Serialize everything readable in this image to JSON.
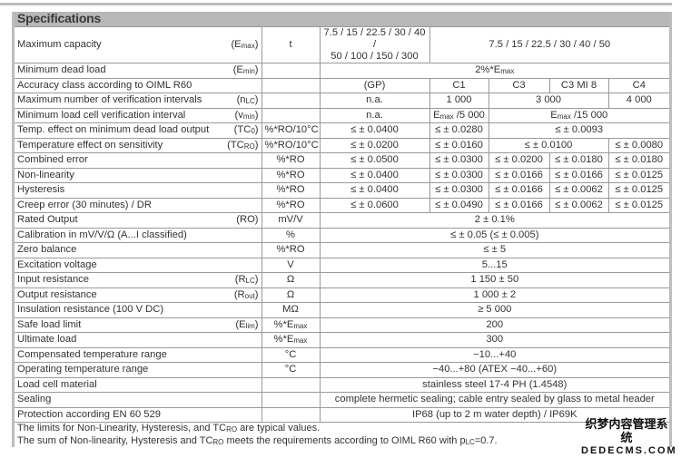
{
  "title": "Specifications",
  "rows": [
    {
      "label": "Maximum capacity",
      "symbol": [
        "(E",
        {
          "sub": "max"
        },
        ")"
      ],
      "unit": [
        "t"
      ],
      "values": [
        {
          "t": [
            "7.5 / 15 / 22.5 / 30 / 40 /\n50 / 100 / 150 / 300"
          ],
          "span": 1
        },
        {
          "t": [
            "7.5 / 15 / 22.5 / 30 / 40 / 50"
          ],
          "span": 4
        }
      ]
    },
    {
      "label": "Minimum dead load",
      "symbol": [
        "(E",
        {
          "sub": "min"
        },
        ")"
      ],
      "unit": [],
      "values": [
        {
          "t": [
            "2%*E",
            {
              "sub": "max"
            }
          ],
          "span": 5
        }
      ]
    },
    {
      "label": "Accuracy class according to OIML R60",
      "symbol": [],
      "unit": [],
      "values": [
        {
          "t": [
            "(GP)"
          ],
          "span": 1
        },
        {
          "t": [
            "C1"
          ],
          "span": 1
        },
        {
          "t": [
            "C3"
          ],
          "span": 1
        },
        {
          "t": [
            "C3 MI 8"
          ],
          "span": 1
        },
        {
          "t": [
            "C4"
          ],
          "span": 1
        }
      ]
    },
    {
      "label": "Maximum number of verification intervals",
      "symbol": [
        "(n",
        {
          "sub": "LC"
        },
        ")"
      ],
      "unit": [],
      "values": [
        {
          "t": [
            "n.a."
          ],
          "span": 1
        },
        {
          "t": [
            "1 000"
          ],
          "span": 1
        },
        {
          "t": [
            "3 000"
          ],
          "span": 2
        },
        {
          "t": [
            "4 000"
          ],
          "span": 1
        }
      ]
    },
    {
      "label": "Minimum load cell verification interval",
      "symbol": [
        "(v",
        {
          "sub": "min"
        },
        ")"
      ],
      "unit": [],
      "values": [
        {
          "t": [
            "n.a."
          ],
          "span": 1
        },
        {
          "t": [
            "E",
            {
              "sub": "max"
            },
            " /5 000"
          ],
          "span": 1
        },
        {
          "t": [
            "E",
            {
              "sub": "max"
            },
            " /15 000"
          ],
          "span": 3
        }
      ]
    },
    {
      "label": "Temp. effect on minimum dead load output",
      "symbol": [
        "(TC",
        {
          "sub": "0"
        },
        ")"
      ],
      "unit": [
        "%*RO/10°C"
      ],
      "values": [
        {
          "t": [
            "≤ ± 0.0400"
          ],
          "span": 1
        },
        {
          "t": [
            "≤ ± 0.0280"
          ],
          "span": 1
        },
        {
          "t": [
            "≤ ± 0.0093"
          ],
          "span": 3
        }
      ]
    },
    {
      "label": "Temperature effect on sensitivity",
      "symbol": [
        "(TC",
        {
          "sub": "RO"
        },
        ")"
      ],
      "unit": [
        "%*RO/10°C"
      ],
      "values": [
        {
          "t": [
            "≤ ± 0.0200"
          ],
          "span": 1
        },
        {
          "t": [
            "≤ ± 0.0160"
          ],
          "span": 1
        },
        {
          "t": [
            "≤ ± 0.0100"
          ],
          "span": 2
        },
        {
          "t": [
            "≤ ± 0.0080"
          ],
          "span": 1
        }
      ]
    },
    {
      "label": "Combined error",
      "symbol": [],
      "unit": [
        "%*RO"
      ],
      "values": [
        {
          "t": [
            "≤ ± 0.0500"
          ],
          "span": 1
        },
        {
          "t": [
            "≤ ± 0.0300"
          ],
          "span": 1
        },
        {
          "t": [
            "≤ ± 0.0200"
          ],
          "span": 1
        },
        {
          "t": [
            "≤ ± 0.0180"
          ],
          "span": 1
        },
        {
          "t": [
            "≤ ± 0.0180"
          ],
          "span": 1
        }
      ]
    },
    {
      "label": "Non-linearity",
      "symbol": [],
      "unit": [
        "%*RO"
      ],
      "values": [
        {
          "t": [
            "≤ ± 0.0400"
          ],
          "span": 1
        },
        {
          "t": [
            "≤ ± 0.0300"
          ],
          "span": 1
        },
        {
          "t": [
            "≤ ± 0.0166"
          ],
          "span": 1
        },
        {
          "t": [
            "≤ ± 0.0166"
          ],
          "span": 1
        },
        {
          "t": [
            "≤ ± 0.0125"
          ],
          "span": 1
        }
      ]
    },
    {
      "label": "Hysteresis",
      "symbol": [],
      "unit": [
        "%*RO"
      ],
      "values": [
        {
          "t": [
            "≤ ± 0.0400"
          ],
          "span": 1
        },
        {
          "t": [
            "≤ ± 0.0300"
          ],
          "span": 1
        },
        {
          "t": [
            "≤ ± 0.0166"
          ],
          "span": 1
        },
        {
          "t": [
            "≤ ± 0.0062"
          ],
          "span": 1
        },
        {
          "t": [
            "≤ ± 0.0125"
          ],
          "span": 1
        }
      ]
    },
    {
      "label": "Creep error (30 minutes) / DR",
      "symbol": [],
      "unit": [
        "%*RO"
      ],
      "values": [
        {
          "t": [
            "≤ ± 0.0600"
          ],
          "span": 1
        },
        {
          "t": [
            "≤ ± 0.0490"
          ],
          "span": 1
        },
        {
          "t": [
            "≤ ± 0.0166"
          ],
          "span": 1
        },
        {
          "t": [
            "≤ ± 0.0062"
          ],
          "span": 1
        },
        {
          "t": [
            "≤ ± 0.0125"
          ],
          "span": 1
        }
      ]
    },
    {
      "label": "Rated Output",
      "symbol": [
        "(RO)"
      ],
      "unit": [
        "mV/V"
      ],
      "values": [
        {
          "t": [
            "2 ± 0.1%"
          ],
          "span": 5
        }
      ]
    },
    {
      "label": "Calibration in mV/V/Ω (A...I classified)",
      "symbol": [],
      "unit": [
        "%"
      ],
      "values": [
        {
          "t": [
            "≤ ± 0.05 (≤ ± 0.005)"
          ],
          "span": 5
        }
      ]
    },
    {
      "label": "Zero balance",
      "symbol": [],
      "unit": [
        "%*RO"
      ],
      "values": [
        {
          "t": [
            "≤ ± 5"
          ],
          "span": 5
        }
      ]
    },
    {
      "label": "Excitation voltage",
      "symbol": [],
      "unit": [
        "V"
      ],
      "values": [
        {
          "t": [
            "5...15"
          ],
          "span": 5
        }
      ]
    },
    {
      "label": "Input resistance",
      "symbol": [
        "(R",
        {
          "sub": "LC"
        },
        ")"
      ],
      "unit": [
        "Ω"
      ],
      "values": [
        {
          "t": [
            "1 150 ± 50"
          ],
          "span": 5
        }
      ]
    },
    {
      "label": "Output resistance",
      "symbol": [
        "(R",
        {
          "sub": "out"
        },
        ")"
      ],
      "unit": [
        "Ω"
      ],
      "values": [
        {
          "t": [
            "1 000 ± 2"
          ],
          "span": 5
        }
      ]
    },
    {
      "label": "Insulation resistance (100 V DC)",
      "symbol": [],
      "unit": [
        "MΩ"
      ],
      "values": [
        {
          "t": [
            "≥ 5 000"
          ],
          "span": 5
        }
      ]
    },
    {
      "label": "Safe load limit",
      "symbol": [
        "(E",
        {
          "sub": "lim"
        },
        ")"
      ],
      "unit": [
        "%*E",
        {
          "sub": "max"
        }
      ],
      "values": [
        {
          "t": [
            "200"
          ],
          "span": 5
        }
      ]
    },
    {
      "label": "Ultimate load",
      "symbol": [],
      "unit": [
        "%*E",
        {
          "sub": "max"
        }
      ],
      "values": [
        {
          "t": [
            "300"
          ],
          "span": 5
        }
      ]
    },
    {
      "label": "Compensated temperature range",
      "symbol": [],
      "unit": [
        "°C"
      ],
      "values": [
        {
          "t": [
            "−10...+40"
          ],
          "span": 5
        }
      ]
    },
    {
      "label": "Operating temperature range",
      "symbol": [],
      "unit": [
        "°C"
      ],
      "values": [
        {
          "t": [
            "−40...+80 (ATEX −40...+60)"
          ],
          "span": 5
        }
      ]
    },
    {
      "label": "Load cell material",
      "symbol": [],
      "unit": [],
      "values": [
        {
          "t": [
            "stainless steel 17-4 PH (1.4548)"
          ],
          "span": 5
        }
      ]
    },
    {
      "label": "Sealing",
      "symbol": [],
      "unit": [],
      "values": [
        {
          "t": [
            "complete hermetic sealing; cable entry sealed by glass to metal header"
          ],
          "span": 5
        }
      ]
    },
    {
      "label": "Protection according EN 60 529",
      "symbol": [],
      "unit": [],
      "values": [
        {
          "t": [
            "IP68 (up to 2 m water depth) / IP69K"
          ],
          "span": 5
        }
      ]
    }
  ],
  "footnotes": [
    [
      "The limits for Non-Linearity, Hysteresis, and TC",
      {
        "sub": "RO"
      },
      " are typical values."
    ],
    [
      "The sum of Non-linearity, Hysteresis and TC",
      {
        "sub": "RO"
      },
      " meets the requirements according to OIML R60 with p",
      {
        "sub": "LC"
      },
      "=0.7."
    ]
  ],
  "watermark": {
    "cn": "织梦内容管理系统",
    "en": "DEDECMS.COM"
  }
}
